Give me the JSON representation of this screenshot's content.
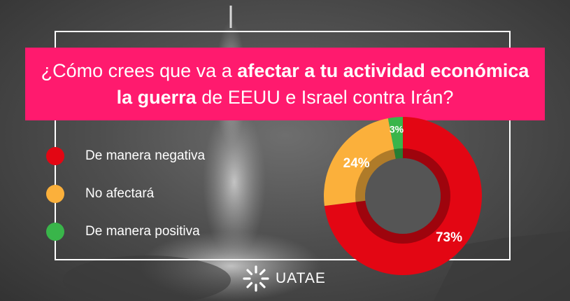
{
  "question": {
    "part1": "¿Cómo crees que va a ",
    "part2": "afectar a tu actividad económica la guerra",
    "part3": " de EEUU e Israel contra Irán?"
  },
  "brand": {
    "name": "UATAE"
  },
  "colors": {
    "banner": "#ff1a6e",
    "negative": "#e30613",
    "neutral": "#fbb03b",
    "positive": "#39b54a"
  },
  "chart_data": {
    "type": "pie",
    "subtype": "donut",
    "title": "",
    "categories": [
      "De manera negativa",
      "No afectará",
      "De manera positiva"
    ],
    "values": [
      73,
      24,
      3
    ],
    "labels": [
      "73%",
      "24%",
      "3%"
    ],
    "colors": [
      "#e30613",
      "#fbb03b",
      "#39b54a"
    ],
    "legend": "left"
  }
}
